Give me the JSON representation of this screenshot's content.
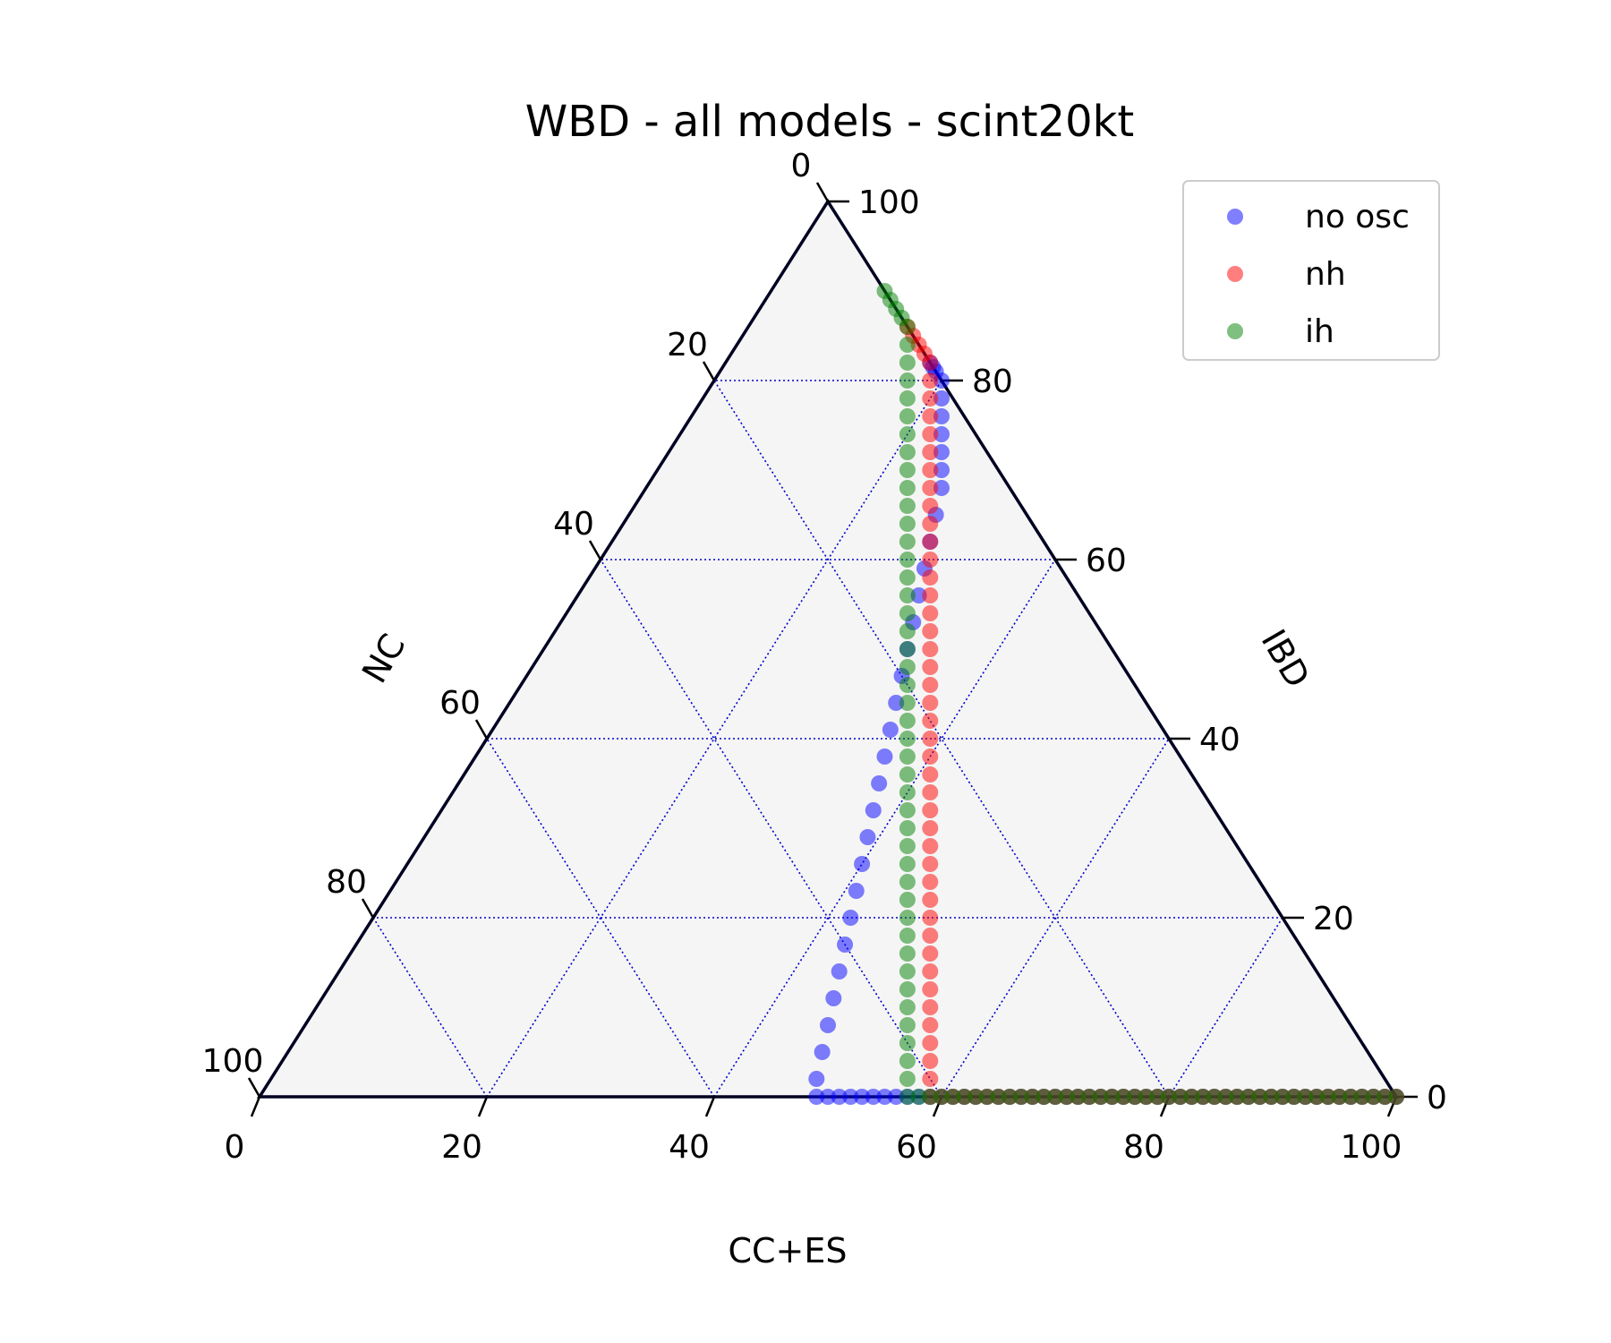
{
  "chart_data": {
    "type": "scatter",
    "subtype": "ternary",
    "title": "WBD - all models - scint20kt",
    "axes": {
      "bottom": {
        "label": "CC+ES",
        "ticks": [
          "0",
          "20",
          "40",
          "60",
          "80",
          "100"
        ]
      },
      "left": {
        "label": "NC",
        "ticks": [
          "0",
          "20",
          "40",
          "60",
          "80",
          "100"
        ]
      },
      "right": {
        "label": "IBD",
        "ticks": [
          "0",
          "20",
          "40",
          "60",
          "80",
          "100"
        ]
      }
    },
    "grid": true,
    "legend": {
      "position": "top-right",
      "entries": [
        "no osc",
        "nh",
        "ih"
      ]
    },
    "series": [
      {
        "name": "no osc",
        "color": "#0000ff",
        "points": [
          [
            18,
            0,
            82
          ],
          [
            18.5,
            0,
            81.5
          ],
          [
            19,
            0,
            81
          ],
          [
            20,
            0,
            80
          ],
          [
            21,
            1,
            78
          ],
          [
            22,
            2,
            76
          ],
          [
            23,
            3,
            74
          ],
          [
            24,
            4,
            72
          ],
          [
            25,
            5,
            70
          ],
          [
            26,
            6,
            68
          ],
          [
            27,
            8,
            65
          ],
          [
            28,
            10,
            62
          ],
          [
            29,
            12,
            59
          ],
          [
            30,
            14,
            56
          ],
          [
            31,
            16,
            53
          ],
          [
            32,
            18,
            50
          ],
          [
            33,
            20,
            47
          ],
          [
            34,
            22,
            44
          ],
          [
            35,
            24,
            41
          ],
          [
            36,
            26,
            38
          ],
          [
            37,
            28,
            35
          ],
          [
            38,
            30,
            32
          ],
          [
            39,
            32,
            29
          ],
          [
            40,
            34,
            26
          ],
          [
            41,
            36,
            23
          ],
          [
            42,
            38,
            20
          ],
          [
            43,
            40,
            17
          ],
          [
            44,
            42,
            14
          ],
          [
            45,
            44,
            11
          ],
          [
            46,
            46,
            8
          ],
          [
            47,
            48,
            5
          ],
          [
            48,
            50,
            2
          ],
          [
            49,
            51,
            0
          ],
          [
            50,
            50,
            0
          ],
          [
            51,
            49,
            0
          ],
          [
            52,
            48,
            0
          ],
          [
            53,
            47,
            0
          ],
          [
            54,
            46,
            0
          ],
          [
            55,
            45,
            0
          ],
          [
            56,
            44,
            0
          ],
          [
            57,
            43,
            0
          ],
          [
            58,
            42,
            0
          ],
          [
            59,
            41,
            0
          ],
          [
            60,
            40,
            0
          ],
          [
            61,
            39,
            0
          ],
          [
            62,
            38,
            0
          ],
          [
            63,
            37,
            0
          ],
          [
            64,
            36,
            0
          ],
          [
            65,
            35,
            0
          ],
          [
            66,
            34,
            0
          ],
          [
            67,
            33,
            0
          ],
          [
            68,
            32,
            0
          ],
          [
            69,
            31,
            0
          ],
          [
            70,
            30,
            0
          ],
          [
            71,
            29,
            0
          ],
          [
            72,
            28,
            0
          ],
          [
            73,
            27,
            0
          ],
          [
            74,
            26,
            0
          ],
          [
            75,
            25,
            0
          ],
          [
            76,
            24,
            0
          ],
          [
            77,
            23,
            0
          ],
          [
            78,
            22,
            0
          ],
          [
            79,
            21,
            0
          ],
          [
            80,
            20,
            0
          ],
          [
            81,
            19,
            0
          ],
          [
            82,
            18,
            0
          ],
          [
            83,
            17,
            0
          ],
          [
            84,
            16,
            0
          ],
          [
            85,
            15,
            0
          ],
          [
            86,
            14,
            0
          ],
          [
            87,
            13,
            0
          ],
          [
            88,
            12,
            0
          ],
          [
            89,
            11,
            0
          ],
          [
            90,
            10,
            0
          ],
          [
            91,
            9,
            0
          ],
          [
            92,
            8,
            0
          ],
          [
            93,
            7,
            0
          ],
          [
            94,
            6,
            0
          ],
          [
            95,
            5,
            0
          ],
          [
            96,
            4,
            0
          ],
          [
            97,
            3,
            0
          ],
          [
            98,
            2,
            0
          ],
          [
            99,
            1,
            0
          ],
          [
            100,
            0,
            0
          ]
        ]
      },
      {
        "name": "nh",
        "color": "#ff0000",
        "points": [
          [
            14,
            0,
            86
          ],
          [
            15,
            0,
            85
          ],
          [
            16,
            0,
            84
          ],
          [
            17,
            0,
            83
          ],
          [
            18,
            0,
            82
          ],
          [
            19,
            1,
            80
          ],
          [
            20,
            2,
            78
          ],
          [
            21,
            3,
            76
          ],
          [
            22,
            4,
            74
          ],
          [
            23,
            5,
            72
          ],
          [
            24,
            6,
            70
          ],
          [
            25,
            7,
            68
          ],
          [
            26,
            8,
            66
          ],
          [
            27,
            9,
            64
          ],
          [
            28,
            10,
            62
          ],
          [
            29,
            11,
            60
          ],
          [
            30,
            12,
            58
          ],
          [
            31,
            13,
            56
          ],
          [
            32,
            14,
            54
          ],
          [
            33,
            15,
            52
          ],
          [
            34,
            16,
            50
          ],
          [
            35,
            17,
            48
          ],
          [
            36,
            18,
            46
          ],
          [
            37,
            19,
            44
          ],
          [
            38,
            20,
            42
          ],
          [
            39,
            21,
            40
          ],
          [
            40,
            22,
            38
          ],
          [
            41,
            23,
            36
          ],
          [
            42,
            24,
            34
          ],
          [
            43,
            25,
            32
          ],
          [
            44,
            26,
            30
          ],
          [
            45,
            27,
            28
          ],
          [
            46,
            28,
            26
          ],
          [
            47,
            29,
            24
          ],
          [
            48,
            30,
            22
          ],
          [
            49,
            31,
            20
          ],
          [
            50,
            32,
            18
          ],
          [
            51,
            33,
            16
          ],
          [
            52,
            34,
            14
          ],
          [
            53,
            35,
            12
          ],
          [
            54,
            36,
            10
          ],
          [
            55,
            37,
            8
          ],
          [
            56,
            38,
            6
          ],
          [
            57,
            39,
            4
          ],
          [
            58,
            40,
            2
          ],
          [
            59,
            41,
            0
          ],
          [
            60,
            40,
            0
          ],
          [
            61,
            39,
            0
          ],
          [
            62,
            38,
            0
          ],
          [
            63,
            37,
            0
          ],
          [
            64,
            36,
            0
          ],
          [
            65,
            35,
            0
          ],
          [
            66,
            34,
            0
          ],
          [
            67,
            33,
            0
          ],
          [
            68,
            32,
            0
          ],
          [
            69,
            31,
            0
          ],
          [
            70,
            30,
            0
          ],
          [
            71,
            29,
            0
          ],
          [
            72,
            28,
            0
          ],
          [
            73,
            27,
            0
          ],
          [
            74,
            26,
            0
          ],
          [
            75,
            25,
            0
          ],
          [
            76,
            24,
            0
          ],
          [
            77,
            23,
            0
          ],
          [
            78,
            22,
            0
          ],
          [
            79,
            21,
            0
          ],
          [
            80,
            20,
            0
          ],
          [
            81,
            19,
            0
          ],
          [
            82,
            18,
            0
          ],
          [
            83,
            17,
            0
          ],
          [
            84,
            16,
            0
          ],
          [
            85,
            15,
            0
          ],
          [
            86,
            14,
            0
          ],
          [
            87,
            13,
            0
          ],
          [
            88,
            12,
            0
          ],
          [
            89,
            11,
            0
          ],
          [
            90,
            10,
            0
          ],
          [
            91,
            9,
            0
          ],
          [
            92,
            8,
            0
          ],
          [
            93,
            7,
            0
          ],
          [
            94,
            6,
            0
          ],
          [
            95,
            5,
            0
          ],
          [
            96,
            4,
            0
          ],
          [
            97,
            3,
            0
          ],
          [
            98,
            2,
            0
          ],
          [
            99,
            1,
            0
          ],
          [
            100,
            0,
            0
          ]
        ]
      },
      {
        "name": "ih",
        "color": "#008000",
        "points": [
          [
            10,
            0,
            90
          ],
          [
            11,
            0,
            89
          ],
          [
            12,
            0,
            88
          ],
          [
            13,
            0,
            87
          ],
          [
            14,
            0,
            86
          ],
          [
            15,
            1,
            84
          ],
          [
            16,
            2,
            82
          ],
          [
            17,
            3,
            80
          ],
          [
            18,
            4,
            78
          ],
          [
            19,
            5,
            76
          ],
          [
            20,
            6,
            74
          ],
          [
            21,
            7,
            72
          ],
          [
            22,
            8,
            70
          ],
          [
            23,
            9,
            68
          ],
          [
            24,
            10,
            66
          ],
          [
            25,
            11,
            64
          ],
          [
            26,
            12,
            62
          ],
          [
            27,
            13,
            60
          ],
          [
            28,
            14,
            58
          ],
          [
            29,
            15,
            56
          ],
          [
            30,
            16,
            54
          ],
          [
            31,
            17,
            52
          ],
          [
            32,
            18,
            50
          ],
          [
            33,
            19,
            48
          ],
          [
            34,
            20,
            46
          ],
          [
            35,
            21,
            44
          ],
          [
            36,
            22,
            42
          ],
          [
            37,
            23,
            40
          ],
          [
            38,
            24,
            38
          ],
          [
            39,
            25,
            36
          ],
          [
            40,
            26,
            34
          ],
          [
            41,
            27,
            32
          ],
          [
            42,
            28,
            30
          ],
          [
            43,
            29,
            28
          ],
          [
            44,
            30,
            26
          ],
          [
            45,
            31,
            24
          ],
          [
            46,
            32,
            22
          ],
          [
            47,
            33,
            20
          ],
          [
            48,
            34,
            18
          ],
          [
            49,
            35,
            16
          ],
          [
            50,
            36,
            14
          ],
          [
            51,
            37,
            12
          ],
          [
            52,
            38,
            10
          ],
          [
            53,
            39,
            8
          ],
          [
            54,
            40,
            6
          ],
          [
            55,
            41,
            4
          ],
          [
            56,
            42,
            2
          ],
          [
            57,
            43,
            0
          ],
          [
            58,
            42,
            0
          ],
          [
            59,
            41,
            0
          ],
          [
            60,
            40,
            0
          ],
          [
            61,
            39,
            0
          ],
          [
            62,
            38,
            0
          ],
          [
            63,
            37,
            0
          ],
          [
            64,
            36,
            0
          ],
          [
            65,
            35,
            0
          ],
          [
            66,
            34,
            0
          ],
          [
            67,
            33,
            0
          ],
          [
            68,
            32,
            0
          ],
          [
            69,
            31,
            0
          ],
          [
            70,
            30,
            0
          ],
          [
            71,
            29,
            0
          ],
          [
            72,
            28,
            0
          ],
          [
            73,
            27,
            0
          ],
          [
            74,
            26,
            0
          ],
          [
            75,
            25,
            0
          ],
          [
            76,
            24,
            0
          ],
          [
            77,
            23,
            0
          ],
          [
            78,
            22,
            0
          ],
          [
            79,
            21,
            0
          ],
          [
            80,
            20,
            0
          ],
          [
            81,
            19,
            0
          ],
          [
            82,
            18,
            0
          ],
          [
            83,
            17,
            0
          ],
          [
            84,
            16,
            0
          ],
          [
            85,
            15,
            0
          ],
          [
            86,
            14,
            0
          ],
          [
            87,
            13,
            0
          ],
          [
            88,
            12,
            0
          ],
          [
            89,
            11,
            0
          ],
          [
            90,
            10,
            0
          ],
          [
            91,
            9,
            0
          ],
          [
            92,
            8,
            0
          ],
          [
            93,
            7,
            0
          ],
          [
            94,
            6,
            0
          ],
          [
            95,
            5,
            0
          ],
          [
            96,
            4,
            0
          ],
          [
            97,
            3,
            0
          ],
          [
            98,
            2,
            0
          ],
          [
            99,
            1,
            0
          ],
          [
            100,
            0,
            0
          ]
        ]
      }
    ]
  }
}
